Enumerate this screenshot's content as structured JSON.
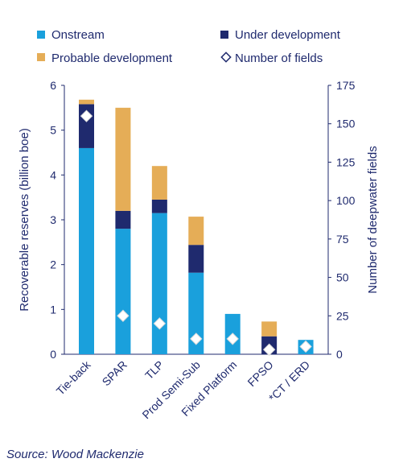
{
  "chart_data": {
    "type": "bar",
    "stacked": true,
    "categories": [
      "Tie-back",
      "SPAR",
      "TLP",
      "Prod Semi-Sub",
      "Fixed Platform",
      "FPSO",
      "*CT / ERD"
    ],
    "series": [
      {
        "name": "Onstream",
        "color": "#1aa0dc",
        "values": [
          4.6,
          2.8,
          3.15,
          1.82,
          0.9,
          0.0,
          0.32
        ]
      },
      {
        "name": "Under development",
        "color": "#1f2a6e",
        "values": [
          0.98,
          0.4,
          0.3,
          0.62,
          0.0,
          0.4,
          0.0
        ]
      },
      {
        "name": "Probable development",
        "color": "#e5ad57",
        "values": [
          0.1,
          2.3,
          0.75,
          0.63,
          0.0,
          0.33,
          0.0
        ]
      }
    ],
    "fields": {
      "name": "Number of fields",
      "values": [
        155,
        25,
        20,
        10,
        10,
        3,
        5
      ]
    },
    "ylabel": "Recoverable reserves (billion boe)",
    "y2label": "Number of deepwater fields",
    "ylim": [
      0,
      6
    ],
    "y2lim": [
      0,
      175
    ],
    "yticks": [
      "0",
      "1",
      "2",
      "3",
      "4",
      "5",
      "6"
    ],
    "y2ticks": [
      "0",
      "25",
      "50",
      "75",
      "100",
      "125",
      "150",
      "175"
    ],
    "legend_position": "top",
    "grid": false
  },
  "source": "Source: Wood Mackenzie"
}
